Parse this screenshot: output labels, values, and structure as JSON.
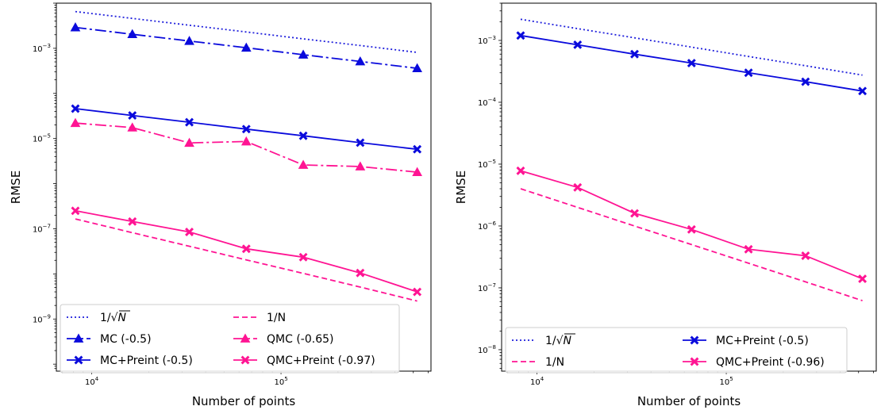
{
  "chart_data": [
    {
      "type": "line",
      "xlabel": "Number of points",
      "ylabel": "RMSE",
      "x_scale": "log",
      "y_scale": "log",
      "xlim": [
        6500,
        620000
      ],
      "ylim": [
        7e-11,
        0.01
      ],
      "x_ticks": [
        {
          "value": 10000,
          "base": "10",
          "exp": "4"
        },
        {
          "value": 100000,
          "base": "10",
          "exp": "5"
        }
      ],
      "y_ticks": [
        {
          "value": 0.001,
          "base": "10",
          "exp": "−3"
        },
        {
          "value": 1e-05,
          "base": "10",
          "exp": "−5"
        },
        {
          "value": 1e-07,
          "base": "10",
          "exp": "−7"
        },
        {
          "value": 1e-09,
          "base": "10",
          "exp": "−9"
        }
      ],
      "grid": false,
      "legend_position": "lower-left",
      "legend_columns": 2,
      "x": [
        8192,
        16384,
        32768,
        65536,
        131072,
        262144,
        524288
      ],
      "series": [
        {
          "name": "1/√N",
          "name_parts": [
            "1/",
            "N"
          ],
          "name_sqrt": true,
          "color": "#1f1fdc",
          "dash": "2,3",
          "marker": "none",
          "values": [
            0.0065,
            0.0046,
            0.00325,
            0.0023,
            0.00162,
            0.00115,
            0.00081
          ]
        },
        {
          "name": "MC (-0.5)",
          "color": "#0a0adc",
          "dash": "14,4,3,4",
          "marker": "triangle",
          "values": [
            0.0029,
            0.00205,
            0.00145,
            0.00103,
            0.00072,
            0.00051,
            0.00036
          ]
        },
        {
          "name": "MC+Preint (-0.5)",
          "color": "#0a0adc",
          "dash": "",
          "marker": "x",
          "values": [
            4.6e-05,
            3.25e-05,
            2.3e-05,
            1.62e-05,
            1.15e-05,
            8.1e-06,
            5.8e-06
          ]
        },
        {
          "name": "1/N",
          "color": "#ff1493",
          "dash": "7,4",
          "marker": "none",
          "values": [
            1.65e-07,
            8.2e-08,
            4.1e-08,
            2.05e-08,
            1.03e-08,
            5.1e-09,
            2.5e-09
          ]
        },
        {
          "name": "QMC (-0.65)",
          "color": "#ff1493",
          "dash": "14,4,3,4",
          "marker": "triangle",
          "values": [
            2.2e-05,
            1.75e-05,
            8e-06,
            8.6e-06,
            2.6e-06,
            2.4e-06,
            1.8e-06
          ]
        },
        {
          "name": "QMC+Preint (-0.97)",
          "color": "#ff1493",
          "dash": "",
          "marker": "x",
          "values": [
            2.5e-07,
            1.45e-07,
            8.5e-08,
            3.6e-08,
            2.35e-08,
            1.05e-08,
            4e-09
          ]
        }
      ]
    },
    {
      "type": "line",
      "xlabel": "Number of points",
      "ylabel": "RMSE",
      "x_scale": "log",
      "y_scale": "log",
      "xlim": [
        6500,
        620000
      ],
      "ylim": [
        4.5e-09,
        0.004
      ],
      "x_ticks": [
        {
          "value": 10000,
          "base": "10",
          "exp": "4"
        },
        {
          "value": 100000,
          "base": "10",
          "exp": "5"
        }
      ],
      "y_ticks": [
        {
          "value": 0.001,
          "base": "10",
          "exp": "−3"
        },
        {
          "value": 0.0001,
          "base": "10",
          "exp": "−4"
        },
        {
          "value": 1e-05,
          "base": "10",
          "exp": "−5"
        },
        {
          "value": 1e-06,
          "base": "10",
          "exp": "−6"
        },
        {
          "value": 1e-07,
          "base": "10",
          "exp": "−7"
        },
        {
          "value": 1e-08,
          "base": "10",
          "exp": "−8"
        }
      ],
      "grid": false,
      "legend_position": "lower-left",
      "legend_columns": 2,
      "x": [
        8192,
        16384,
        32768,
        65536,
        131072,
        262144,
        524288
      ],
      "series": [
        {
          "name": "1/√N",
          "name_parts": [
            "1/",
            "N"
          ],
          "name_sqrt": true,
          "color": "#1f1fdc",
          "dash": "2,3",
          "marker": "none",
          "values": [
            0.0022,
            0.00155,
            0.0011,
            0.00078,
            0.00055,
            0.00039,
            0.000275
          ]
        },
        {
          "name": "1/N",
          "color": "#ff1493",
          "dash": "7,4",
          "marker": "none",
          "values": [
            4e-06,
            2e-06,
            1e-06,
            5e-07,
            2.5e-07,
            1.25e-07,
            6.2e-08
          ]
        },
        {
          "name": "MC+Preint (-0.5)",
          "color": "#0a0adc",
          "dash": "",
          "marker": "x",
          "values": [
            0.0012,
            0.00085,
            0.0006,
            0.00043,
            0.0003,
            0.000215,
            0.000152
          ]
        },
        {
          "name": "QMC+Preint (-0.96)",
          "color": "#ff1493",
          "dash": "",
          "marker": "x",
          "values": [
            7.8e-06,
            4.2e-06,
            1.6e-06,
            8.8e-07,
            4.2e-07,
            3.3e-07,
            1.4e-07
          ]
        }
      ]
    }
  ]
}
